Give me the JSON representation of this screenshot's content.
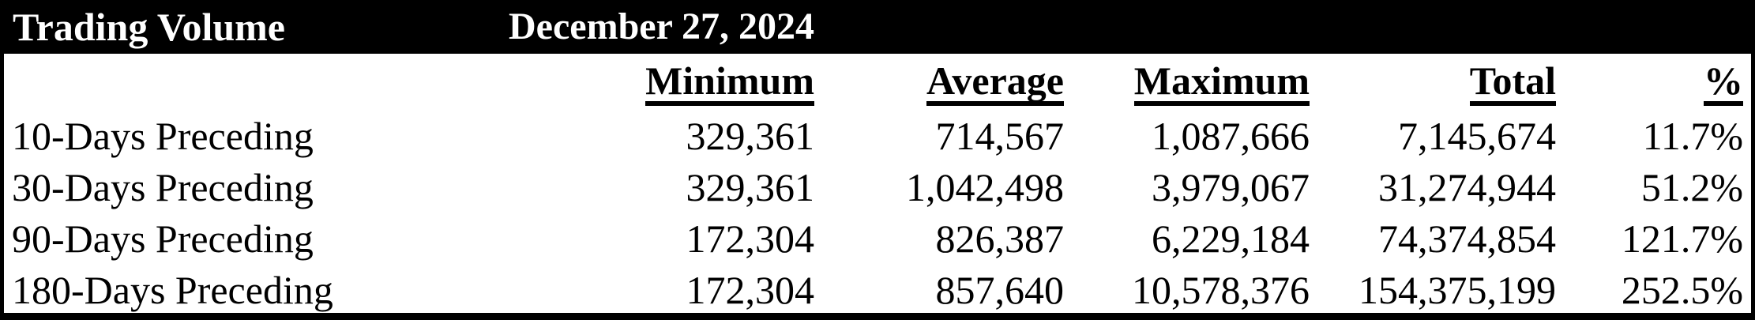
{
  "header": {
    "title": "Trading Volume",
    "date": "December 27, 2024"
  },
  "table": {
    "columns": {
      "minimum": "Minimum",
      "average": "Average",
      "maximum": "Maximum",
      "total": "Total",
      "percent": "%"
    },
    "rows": [
      {
        "label": "10-Days Preceding",
        "minimum": "329,361",
        "average": "714,567",
        "maximum": "1,087,666",
        "total": "7,145,674",
        "percent": "11.7%"
      },
      {
        "label": "30-Days Preceding",
        "minimum": "329,361",
        "average": "1,042,498",
        "maximum": "3,979,067",
        "total": "31,274,944",
        "percent": "51.2%"
      },
      {
        "label": "90-Days Preceding",
        "minimum": "172,304",
        "average": "826,387",
        "maximum": "6,229,184",
        "total": "74,374,854",
        "percent": "121.7%"
      },
      {
        "label": "180-Days Preceding",
        "minimum": "172,304",
        "average": "857,640",
        "maximum": "10,578,376",
        "total": "154,375,199",
        "percent": "252.5%"
      }
    ]
  },
  "colors": {
    "titlebar_bg": "#000000",
    "titlebar_text": "#ffffff",
    "body_bg": "#ffffff",
    "body_text": "#000000",
    "border": "#000000"
  },
  "chart_data": {
    "type": "table",
    "title": "Trading Volume",
    "date": "December 27, 2024",
    "columns": [
      "",
      "Minimum",
      "Average",
      "Maximum",
      "Total",
      "%"
    ],
    "rows": [
      [
        "10-Days Preceding",
        329361,
        714567,
        1087666,
        7145674,
        "11.7%"
      ],
      [
        "30-Days Preceding",
        329361,
        1042498,
        3979067,
        31274944,
        "51.2%"
      ],
      [
        "90-Days Preceding",
        172304,
        826387,
        6229184,
        74374854,
        "121.7%"
      ],
      [
        "180-Days Preceding",
        172304,
        857640,
        10578376,
        154375199,
        "252.5%"
      ]
    ]
  }
}
